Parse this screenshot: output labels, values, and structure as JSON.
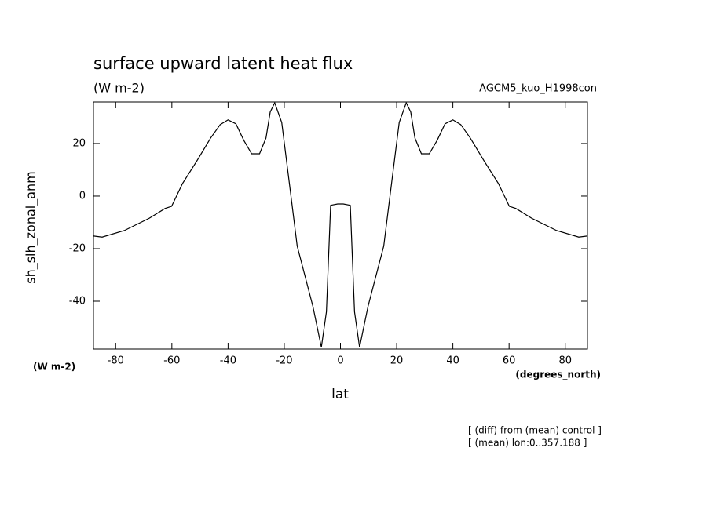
{
  "chart_data": {
    "type": "line",
    "title": "surface upward latent heat flux",
    "subtitle": "(W m-2)",
    "dataset_label": "AGCM5_kuo_H1998con",
    "y_label": "sh_slh_zonal_anm",
    "y_unit": "(W m-2)",
    "x_unit": "(degrees_north)",
    "x_label": "lat",
    "notes": [
      "[ (diff) from (mean) control ]",
      "[ (mean) lon:0..357.188 ]"
    ],
    "color": "#000000",
    "x": [
      -87.8,
      -84.8,
      -76.9,
      -68.0,
      -62.4,
      -60.1,
      -56.2,
      -51.2,
      -46.2,
      -42.8,
      -40.0,
      -37.2,
      -34.4,
      -31.6,
      -28.8,
      -26.5,
      -25.0,
      -23.4,
      -20.9,
      -18.2,
      -15.4,
      -9.8,
      -6.8,
      -5.0,
      -3.5,
      -1.0,
      1.0,
      3.5,
      5.0,
      6.8,
      9.8,
      15.4,
      18.2,
      20.9,
      23.4,
      25.0,
      26.5,
      28.8,
      31.6,
      34.4,
      37.2,
      40.0,
      42.8,
      46.2,
      51.2,
      56.2,
      60.1,
      62.4,
      68.0,
      76.9,
      84.8,
      87.8
    ],
    "values": [
      -15.2,
      -15.6,
      -13.1,
      -8.4,
      -4.7,
      -3.9,
      4.8,
      13.2,
      22.1,
      27.2,
      29.0,
      27.5,
      21.2,
      16.1,
      16.1,
      22.1,
      32.0,
      35.5,
      28.0,
      5.0,
      -19.0,
      -42.0,
      -57.5,
      -44.0,
      -3.5,
      -3.0,
      -3.0,
      -3.5,
      -44.0,
      -57.5,
      -42.0,
      -19.0,
      5.0,
      28.0,
      35.5,
      32.0,
      22.1,
      16.1,
      16.1,
      21.2,
      27.5,
      29.0,
      27.2,
      22.1,
      13.2,
      4.8,
      -3.9,
      -4.7,
      -8.4,
      -13.1,
      -15.6,
      -15.2
    ],
    "xlim": [
      -87.9,
      87.9
    ],
    "ylim": [
      -58.2,
      35.8
    ],
    "xticks": [
      -80,
      -60,
      -40,
      -20,
      0,
      20,
      40,
      60,
      80
    ],
    "yticks": [
      -40,
      -20,
      0,
      20
    ]
  }
}
